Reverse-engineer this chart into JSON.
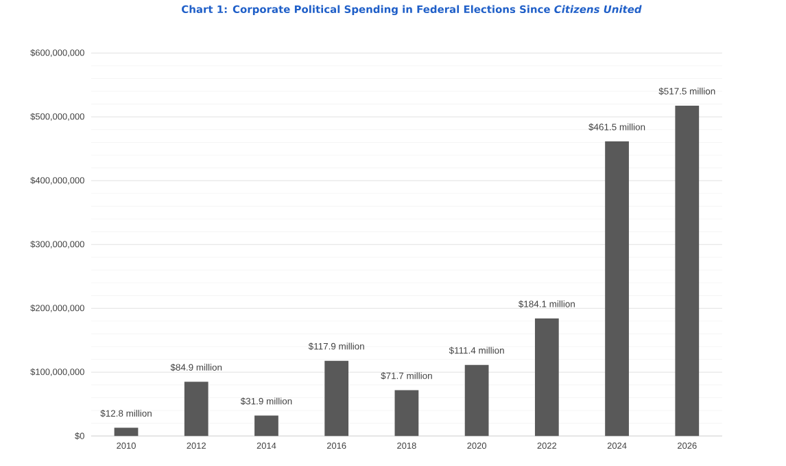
{
  "chart_data": {
    "type": "bar",
    "title": "Chart 1: Corporate Political Spending in Federal Elections Since *Citizens United*",
    "categories": [
      "2010",
      "2012",
      "2014",
      "2016",
      "2018",
      "2020",
      "2022",
      "2024",
      "2026"
    ],
    "values": [
      12800000,
      84900000,
      31900000,
      117900000,
      71700000,
      111400000,
      184100000,
      461500000,
      517500000
    ],
    "value_labels": [
      "$12.8 million",
      "$84.9 million",
      "$31.9 million",
      "$117.9 million",
      "$71.7 million",
      "$111.4 million",
      "$184.1 million",
      "$461.5 million",
      "$517.5 million"
    ],
    "color": "#595959",
    "ylim": [
      0,
      600000000
    ],
    "yticks": [
      {
        "value": 0,
        "label": "$0"
      },
      {
        "value": 20000000,
        "label": null
      },
      {
        "value": 40000000,
        "label": null
      },
      {
        "value": 60000000,
        "label": null
      },
      {
        "value": 80000000,
        "label": null
      },
      {
        "value": 100000000,
        "label": "$100,000,000"
      },
      {
        "value": 120000000,
        "label": null
      },
      {
        "value": 140000000,
        "label": null
      },
      {
        "value": 160000000,
        "label": null
      },
      {
        "value": 180000000,
        "label": null
      },
      {
        "value": 200000000,
        "label": "$200,000,000"
      },
      {
        "value": 220000000,
        "label": null
      },
      {
        "value": 240000000,
        "label": null
      },
      {
        "value": 260000000,
        "label": null
      },
      {
        "value": 280000000,
        "label": null
      },
      {
        "value": 300000000,
        "label": "$300,000,000"
      },
      {
        "value": 320000000,
        "label": null
      },
      {
        "value": 340000000,
        "label": null
      },
      {
        "value": 360000000,
        "label": null
      },
      {
        "value": 380000000,
        "label": null
      },
      {
        "value": 400000000,
        "label": "$400,000,000"
      },
      {
        "value": 420000000,
        "label": null
      },
      {
        "value": 440000000,
        "label": null
      },
      {
        "value": 460000000,
        "label": null
      },
      {
        "value": 480000000,
        "label": null
      },
      {
        "value": 500000000,
        "label": "$500,000,000"
      },
      {
        "value": 520000000,
        "label": null
      },
      {
        "value": 540000000,
        "label": null
      },
      {
        "value": 560000000,
        "label": null
      },
      {
        "value": 580000000,
        "label": null
      },
      {
        "value": 600000000,
        "label": "$600,000,000"
      }
    ],
    "grid": "y"
  }
}
